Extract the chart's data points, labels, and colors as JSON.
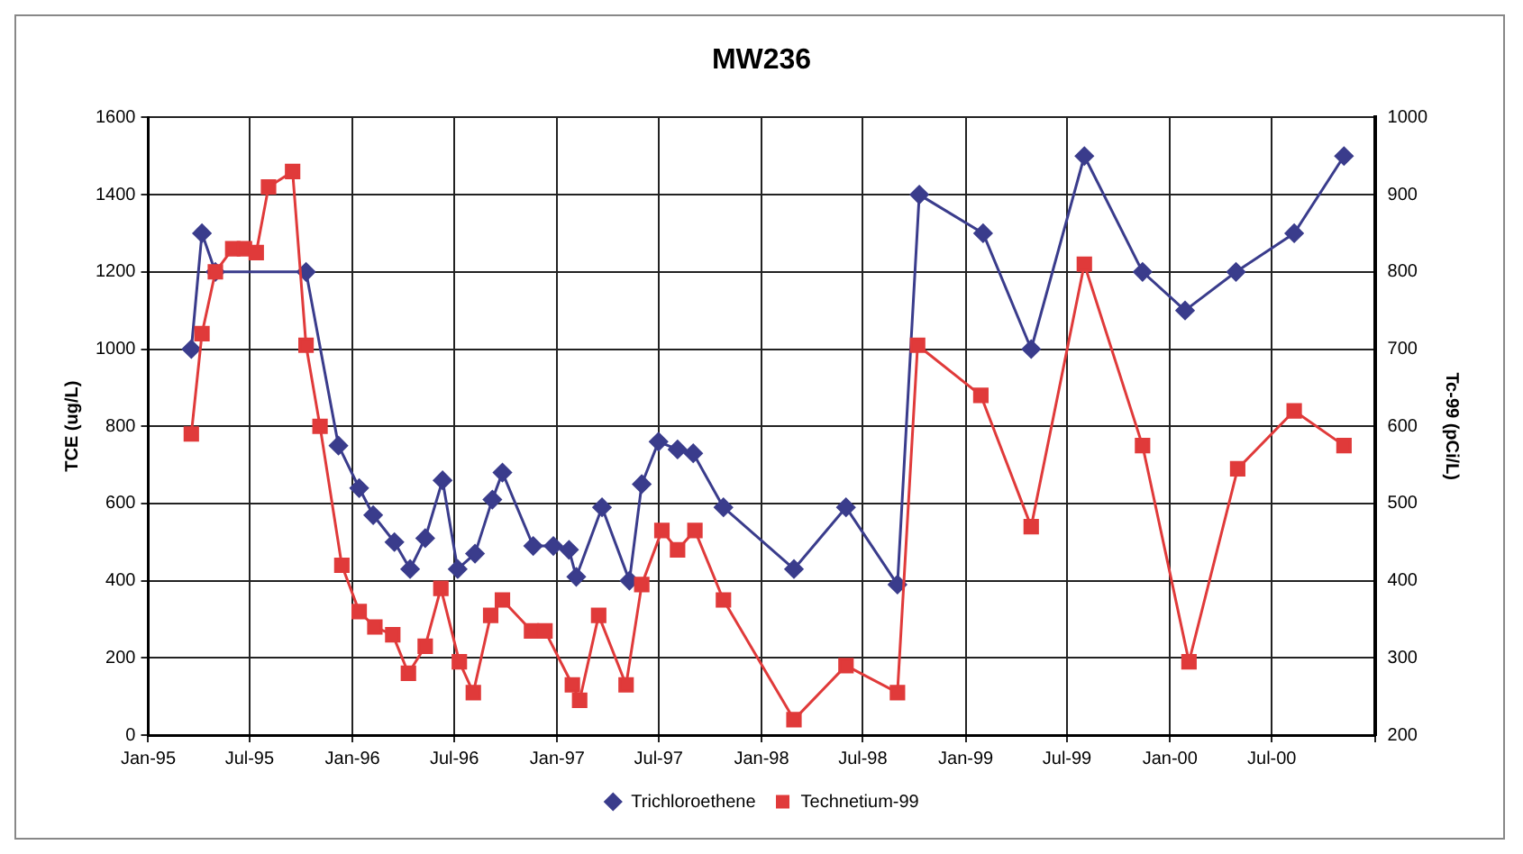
{
  "chart_data": {
    "type": "line",
    "title": "MW236",
    "ylabel": "TCE (ug/L)",
    "y2label": "Tc-99 (pCi/L)",
    "xlim": [
      "1995-01-01",
      "2001-01-01"
    ],
    "xticks": [
      {
        "value": "1995-01-01",
        "label": "Jan-95"
      },
      {
        "value": "1995-07-01",
        "label": "Jul-95"
      },
      {
        "value": "1996-01-01",
        "label": "Jan-96"
      },
      {
        "value": "1996-07-01",
        "label": "Jul-96"
      },
      {
        "value": "1997-01-01",
        "label": "Jan-97"
      },
      {
        "value": "1997-07-01",
        "label": "Jul-97"
      },
      {
        "value": "1998-01-01",
        "label": "Jan-98"
      },
      {
        "value": "1998-07-01",
        "label": "Jul-98"
      },
      {
        "value": "1999-01-01",
        "label": "Jan-99"
      },
      {
        "value": "1999-07-01",
        "label": "Jul-99"
      },
      {
        "value": "2000-01-01",
        "label": "Jan-00"
      },
      {
        "value": "2000-07-01",
        "label": "Jul-00"
      },
      {
        "value": "2001-01-01",
        "label": null
      }
    ],
    "ylim": [
      0,
      1600
    ],
    "yticks": [
      0,
      200,
      400,
      600,
      800,
      1000,
      1200,
      1400,
      1600
    ],
    "y2lim": [
      200,
      1000
    ],
    "y2ticks": [
      200,
      300,
      400,
      500,
      600,
      700,
      800,
      900,
      1000
    ],
    "grid": true,
    "legend": "bottom",
    "line_style": "solid",
    "series": [
      {
        "name": "Trichloroethene",
        "color": "#3a3c8c",
        "marker": "diamond",
        "x": [
          "1995-03-19",
          "1995-04-07",
          "1995-05-01",
          "1995-06-01",
          "1995-06-22",
          "1995-09-16",
          "1995-10-10",
          "1995-12-07",
          "1996-01-13",
          "1996-02-07",
          "1996-03-16",
          "1996-04-13",
          "1996-05-10",
          "1996-06-10",
          "1996-07-07",
          "1996-08-07",
          "1996-09-07",
          "1996-09-25",
          "1996-11-19",
          "1996-12-25",
          "1997-01-22",
          "1997-02-04",
          "1997-03-22",
          "1997-05-10",
          "1997-06-01",
          "1997-07-01",
          "1997-08-04",
          "1997-09-01",
          "1997-10-25",
          "1998-02-28",
          "1998-06-01",
          "1998-09-01",
          "1998-10-10",
          "1999-02-01",
          "1999-04-28",
          "1999-08-01",
          "1999-11-13",
          "2000-01-28",
          "2000-04-28",
          "2000-08-10",
          "2000-11-07"
        ],
        "values": [
          1000,
          1300,
          1200,
          null,
          null,
          null,
          1200,
          750,
          640,
          570,
          500,
          430,
          510,
          660,
          430,
          470,
          610,
          680,
          490,
          490,
          480,
          410,
          590,
          400,
          650,
          760,
          740,
          730,
          590,
          430,
          590,
          390,
          1400,
          1300,
          1000,
          1500,
          1200,
          1100,
          1200,
          1300,
          1500
        ]
      },
      {
        "name": "Technetium-99",
        "color": "#e03a3a",
        "marker": "square",
        "axis": "y2",
        "x": [
          "1995-03-19",
          "1995-04-07",
          "1995-05-01",
          "1995-06-01",
          "1995-06-22",
          "1995-07-13",
          "1995-08-04",
          "1995-09-16",
          "1995-10-10",
          "1995-11-04",
          "1995-12-13",
          "1996-01-13",
          "1996-02-10",
          "1996-03-13",
          "1996-04-10",
          "1996-05-10",
          "1996-06-07",
          "1996-07-10",
          "1996-08-04",
          "1996-09-04",
          "1996-09-25",
          "1996-11-16",
          "1996-12-10",
          "1997-01-28",
          "1997-02-10",
          "1997-03-16",
          "1997-05-04",
          "1997-06-01",
          "1997-07-07",
          "1997-08-04",
          "1997-09-04",
          "1997-10-25",
          "1998-02-28",
          "1998-06-01",
          "1998-09-01",
          "1998-10-07",
          "1999-01-28",
          "1999-04-28",
          "1999-08-01",
          "1999-11-13",
          "2000-02-04",
          "2000-05-01",
          "2000-08-10",
          "2000-11-07"
        ],
        "values": [
          590,
          720,
          800,
          830,
          830,
          825,
          910,
          930,
          705,
          600,
          420,
          360,
          340,
          330,
          280,
          315,
          390,
          295,
          255,
          355,
          375,
          335,
          335,
          265,
          245,
          355,
          265,
          395,
          465,
          440,
          465,
          375,
          220,
          290,
          255,
          705,
          640,
          470,
          810,
          575,
          295,
          545,
          620,
          575
        ]
      }
    ]
  }
}
